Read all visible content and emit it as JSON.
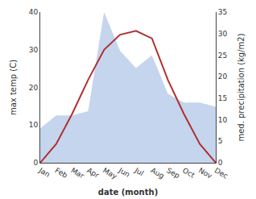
{
  "chart_data": {
    "type": "line",
    "xlabel": "date (month)",
    "ylabel": "max temp (C)",
    "y2label": "med. precipitation (kg/m2)",
    "categories": [
      "Jan",
      "Feb",
      "Mar",
      "Apr",
      "May",
      "Jun",
      "Jul",
      "Aug",
      "Sep",
      "Oct",
      "Nov",
      "Dec"
    ],
    "series": [
      {
        "type": "area",
        "axis": "y2",
        "color": "#c5d5ee",
        "values": [
          8,
          11,
          11,
          12,
          35,
          26,
          22,
          25,
          16,
          14,
          14,
          13
        ]
      },
      {
        "type": "line",
        "color": "#b03030",
        "values": [
          0,
          5,
          13,
          22,
          30,
          34,
          35,
          33,
          22,
          13,
          5,
          0
        ]
      }
    ],
    "ylim": [
      0,
      40
    ],
    "yticks": [
      0,
      10,
      20,
      30,
      40
    ],
    "y2lim": [
      0,
      35
    ],
    "y2ticks": [
      0,
      5,
      10,
      15,
      20,
      25,
      30,
      35
    ],
    "grid": false
  }
}
